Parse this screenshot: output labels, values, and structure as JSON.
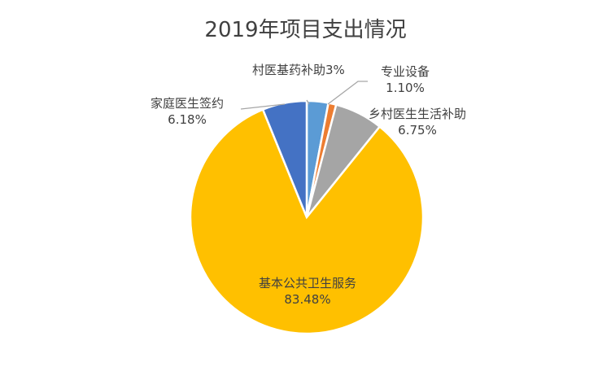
{
  "chart_data": {
    "type": "pie",
    "title": "2019年项目支出情况",
    "slices": [
      {
        "label": "村医基药补助",
        "value_label": "3%",
        "value": 3,
        "color": "#5B9BD5"
      },
      {
        "label": "专业设备",
        "value_label": "1.10%",
        "value": 1.1,
        "color": "#ED7D31"
      },
      {
        "label": "乡村医生生活补助",
        "value_label": "6.75%",
        "value": 6.75,
        "color": "#A5A5A5"
      },
      {
        "label": "基本公共卫生服务",
        "value_label": "83.48%",
        "value": 83.48,
        "color": "#FFC000"
      },
      {
        "label": "家庭医生签约",
        "value_label": "6.18%",
        "value": 6.18,
        "color": "#4472C4"
      }
    ],
    "legend": "none"
  }
}
